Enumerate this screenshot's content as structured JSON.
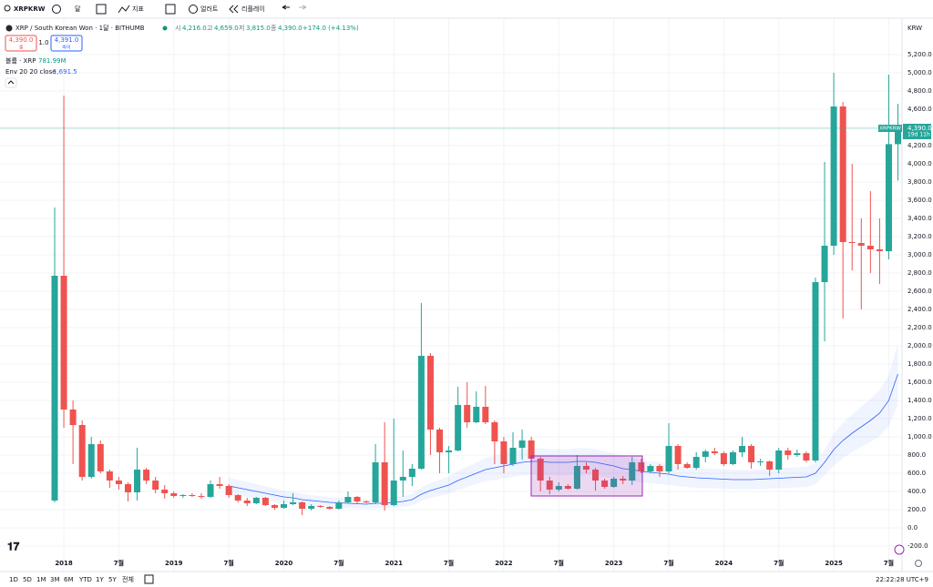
{
  "ui": {
    "symbol": "XRPKRW",
    "interval": "달",
    "indicators": "지표",
    "alerts": "얼러트",
    "replay": "리플레이",
    "ohlc": [
      {
        "k": "시",
        "v": "4,216.0"
      },
      {
        "k": "고",
        "v": "4,659.0"
      },
      {
        "k": "저",
        "v": "3,815.0"
      },
      {
        "k": "종",
        "v": "4,390.0"
      }
    ],
    "change": "+174.0 (+4.13%)",
    "sell_price": "4,390.0",
    "sell": "셀",
    "spread": "1.0",
    "buy_price": "4,391.0",
    "buy": "바이",
    "volume_label": "볼륨 · XRP",
    "volume_value": "781.99M",
    "ranges": [
      "1D",
      "5D",
      "1M",
      "3M",
      "6M",
      "YTD",
      "1Y",
      "5Y",
      "전체"
    ],
    "clock": "22:22:28 UTC+9"
  },
  "chart_data": {
    "type": "candlestick",
    "title": "XRP / South Korean Won · 1달 · BITHUMB",
    "currency": "KRW",
    "categories": [
      null,
      "2018",
      null,
      null,
      null,
      null,
      null,
      "7월",
      null,
      null,
      null,
      null,
      null,
      "2019",
      null,
      null,
      null,
      null,
      null,
      "7월",
      null,
      null,
      null,
      null,
      null,
      "2020",
      null,
      null,
      null,
      null,
      null,
      "7월",
      null,
      null,
      null,
      null,
      null,
      "2021",
      null,
      null,
      null,
      null,
      null,
      "7월",
      null,
      null,
      null,
      null,
      null,
      "2022",
      null,
      null,
      null,
      null,
      null,
      "7월",
      null,
      null,
      null,
      null,
      null,
      "2023",
      null,
      null,
      null,
      null,
      null,
      "7월",
      null,
      null,
      null,
      null,
      null,
      "2024",
      null,
      null,
      null,
      null,
      null,
      "7월",
      null,
      null,
      null,
      null,
      null,
      "2025",
      null,
      null,
      null,
      null,
      null,
      "7월",
      null
    ],
    "open": [
      300,
      2770,
      1300,
      1130,
      560,
      920,
      620,
      520,
      480,
      390,
      640,
      520,
      420,
      380,
      350,
      360,
      350,
      340,
      480,
      460,
      360,
      300,
      270,
      330,
      250,
      220,
      260,
      280,
      210,
      240,
      230,
      210,
      280,
      340,
      290,
      280,
      720,
      250,
      520,
      560,
      650,
      1890,
      1080,
      830,
      850,
      1350,
      1160,
      1330,
      1160,
      950,
      700,
      880,
      960,
      760,
      520,
      420,
      460,
      430,
      680,
      640,
      520,
      450,
      540,
      520,
      720,
      620,
      680,
      620,
      900,
      700,
      660,
      780,
      840,
      820,
      700,
      830,
      900,
      720,
      730,
      640,
      850,
      800,
      820,
      740,
      2700,
      3100,
      4630,
      3140,
      3130,
      3100,
      3060,
      3040,
      4216
    ],
    "high": [
      3520,
      4750,
      1400,
      1180,
      1000,
      960,
      640,
      560,
      500,
      880,
      660,
      560,
      470,
      400,
      370,
      380,
      380,
      520,
      560,
      480,
      370,
      330,
      340,
      340,
      260,
      300,
      380,
      290,
      260,
      250,
      240,
      300,
      400,
      350,
      300,
      920,
      1160,
      1200,
      850,
      700,
      2470,
      1920,
      1100,
      900,
      1550,
      1600,
      1500,
      1560,
      1180,
      1000,
      1050,
      1080,
      1000,
      780,
      560,
      500,
      480,
      800,
      720,
      660,
      540,
      560,
      570,
      780,
      760,
      700,
      700,
      1150,
      920,
      720,
      830,
      860,
      880,
      840,
      850,
      1000,
      920,
      760,
      740,
      880,
      880,
      860,
      840,
      2750,
      4020,
      5000,
      4680,
      4000,
      3400,
      3700,
      3400,
      4980,
      4659
    ],
    "low": [
      280,
      1100,
      700,
      520,
      540,
      600,
      440,
      420,
      290,
      300,
      480,
      380,
      320,
      330,
      330,
      340,
      320,
      330,
      430,
      330,
      280,
      240,
      260,
      240,
      200,
      210,
      250,
      140,
      190,
      220,
      200,
      200,
      270,
      270,
      270,
      260,
      190,
      240,
      340,
      460,
      640,
      800,
      600,
      600,
      840,
      1100,
      1150,
      1140,
      700,
      600,
      680,
      750,
      700,
      400,
      370,
      400,
      420,
      420,
      600,
      410,
      430,
      440,
      480,
      470,
      600,
      600,
      560,
      600,
      640,
      650,
      640,
      720,
      800,
      680,
      690,
      780,
      650,
      680,
      570,
      600,
      750,
      780,
      720,
      720,
      2050,
      3000,
      2300,
      2830,
      2400,
      2800,
      2680,
      2950,
      3815
    ],
    "close": [
      2770,
      1300,
      1130,
      560,
      920,
      620,
      520,
      480,
      390,
      640,
      520,
      420,
      380,
      350,
      360,
      350,
      340,
      480,
      460,
      360,
      300,
      270,
      330,
      250,
      220,
      260,
      280,
      210,
      240,
      230,
      210,
      280,
      340,
      290,
      280,
      720,
      250,
      520,
      560,
      650,
      1890,
      1080,
      830,
      850,
      1350,
      1160,
      1330,
      1160,
      950,
      700,
      880,
      960,
      760,
      520,
      420,
      460,
      430,
      680,
      640,
      520,
      450,
      540,
      520,
      720,
      620,
      680,
      620,
      900,
      700,
      660,
      780,
      840,
      820,
      700,
      830,
      900,
      720,
      730,
      640,
      850,
      800,
      820,
      740,
      2700,
      3100,
      4630,
      3140,
      3130,
      3100,
      3060,
      3040,
      4216,
      4390
    ],
    "up_color": "#26a69a",
    "down_color": "#ef5350",
    "envelope": {
      "name": "Env 20 20 close",
      "color": "#2962ff",
      "band_color": "#2962ff",
      "last_label": "1,691.5",
      "values": [
        null,
        null,
        null,
        null,
        null,
        null,
        null,
        null,
        null,
        null,
        null,
        null,
        null,
        null,
        null,
        null,
        null,
        null,
        null,
        460,
        440,
        420,
        400,
        380,
        360,
        340,
        330,
        310,
        300,
        290,
        280,
        275,
        270,
        265,
        260,
        270,
        270,
        280,
        290,
        310,
        370,
        410,
        440,
        470,
        520,
        560,
        600,
        640,
        660,
        680,
        700,
        720,
        730,
        730,
        720,
        720,
        720,
        730,
        730,
        720,
        700,
        680,
        650,
        640,
        620,
        610,
        600,
        590,
        570,
        560,
        550,
        545,
        540,
        535,
        530,
        530,
        530,
        535,
        540,
        545,
        550,
        555,
        560,
        600,
        720,
        860,
        960,
        1040,
        1110,
        1180,
        1260,
        1400,
        1691.5
      ]
    },
    "last_price": 4390,
    "last_price_label": "4,390.0",
    "countdown": "19d 11h",
    "ylim": [
      -480,
      5600
    ],
    "yticks": [
      {
        "value": -200,
        "label": "-200.0"
      },
      {
        "value": 0,
        "label": "0.0"
      },
      {
        "value": 200,
        "label": "200.0"
      },
      {
        "value": 400,
        "label": "400.0"
      },
      {
        "value": 600,
        "label": "600.0"
      },
      {
        "value": 800,
        "label": "800.0"
      },
      {
        "value": 1000,
        "label": "1,000.0"
      },
      {
        "value": 1200,
        "label": "1,200.0"
      },
      {
        "value": 1400,
        "label": "1,400.0"
      },
      {
        "value": 1600,
        "label": "1,600.0"
      },
      {
        "value": 1800,
        "label": "1,800.0"
      },
      {
        "value": 2000,
        "label": "2,000.0"
      },
      {
        "value": 2200,
        "label": "2,200.0"
      },
      {
        "value": 2400,
        "label": "2,400.0"
      },
      {
        "value": 2600,
        "label": "2,600.0"
      },
      {
        "value": 2800,
        "label": "2,800.0"
      },
      {
        "value": 3000,
        "label": "3,000.0"
      },
      {
        "value": 3200,
        "label": "3,200.0"
      },
      {
        "value": 3400,
        "label": "3,400.0"
      },
      {
        "value": 3600,
        "label": "3,600.0"
      },
      {
        "value": 3800,
        "label": "3,800.0"
      },
      {
        "value": 4000,
        "label": "4,000.0"
      },
      {
        "value": 4200,
        "label": "4,200.0"
      },
      {
        "value": 4400,
        "label": "4,400.0"
      },
      {
        "value": 4600,
        "label": "4,600.0"
      },
      {
        "value": 4800,
        "label": "4,800.0"
      },
      {
        "value": 5000,
        "label": "5,000.0"
      },
      {
        "value": 5200,
        "label": "5,200.0"
      }
    ],
    "grid": true
  }
}
